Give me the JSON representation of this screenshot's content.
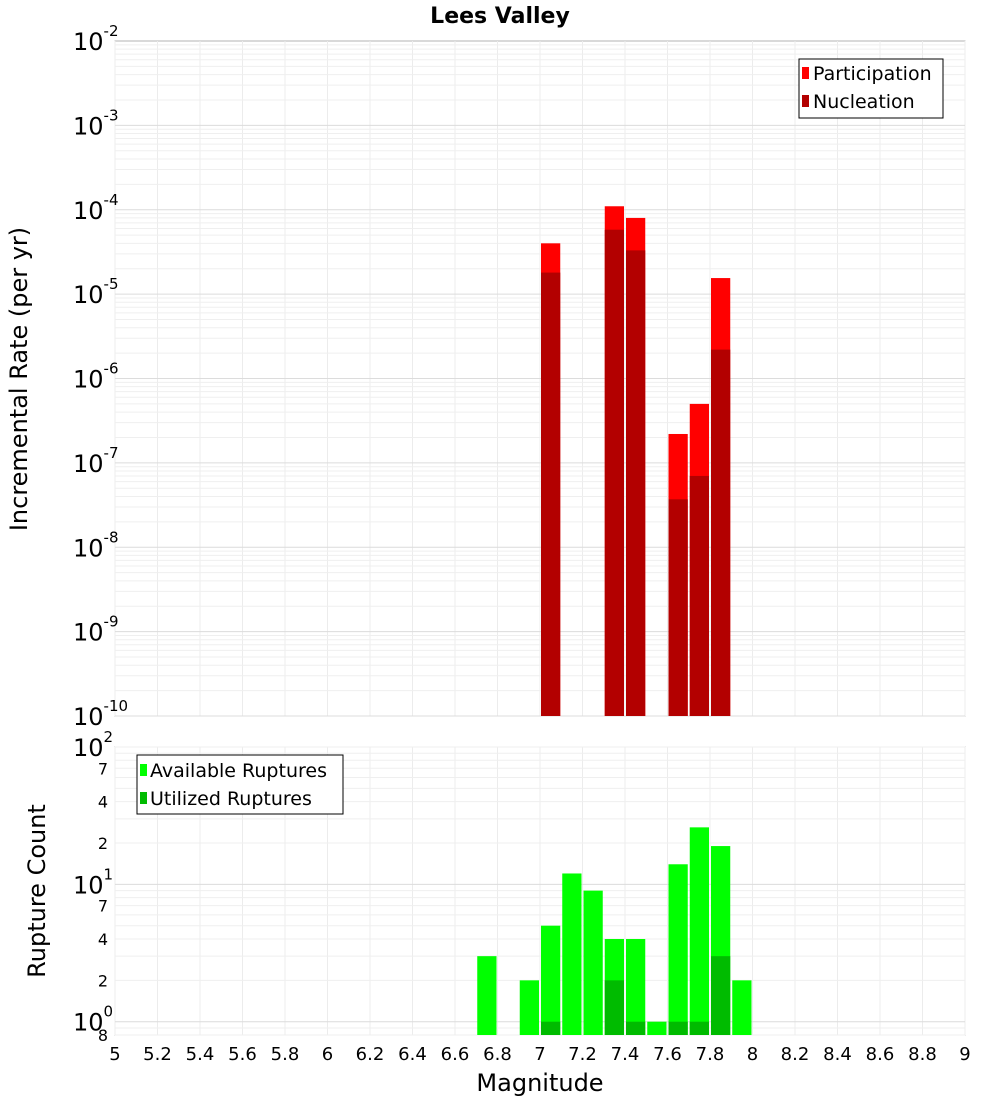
{
  "chart_data": [
    {
      "type": "bar",
      "title": "Lees Valley",
      "xlabel": "",
      "ylabel": "Incremental Rate (per yr)",
      "yscale": "log",
      "ylim": [
        1e-10,
        0.01
      ],
      "xlim": [
        5,
        9
      ],
      "grid": true,
      "legend_position": "top-right",
      "bar_width": 0.1,
      "series": [
        {
          "name": "Participation",
          "color": "#ff0000",
          "x": [
            7.05,
            7.35,
            7.45,
            7.65,
            7.75,
            7.85
          ],
          "values": [
            4e-05,
            0.00011,
            8e-05,
            2.2e-07,
            5e-07,
            1.55e-05
          ]
        },
        {
          "name": "Nucleation",
          "color": "#b30000",
          "x": [
            7.05,
            7.35,
            7.45,
            7.65,
            7.75,
            7.85
          ],
          "values": [
            1.8e-05,
            5.8e-05,
            3.3e-05,
            3.7e-08,
            7e-08,
            2.2e-06
          ]
        }
      ]
    },
    {
      "type": "bar",
      "title": "",
      "xlabel": "Magnitude",
      "ylabel": "Rupture Count",
      "yscale": "log",
      "ylim": [
        0.8,
        100
      ],
      "xlim": [
        5,
        9
      ],
      "grid": true,
      "legend_position": "top-left",
      "bar_width": 0.1,
      "x_ticks": [
        "5",
        "5.2",
        "5.4",
        "5.6",
        "5.8",
        "6",
        "6.2",
        "6.4",
        "6.6",
        "6.8",
        "7",
        "7.2",
        "7.4",
        "7.6",
        "7.8",
        "8",
        "8.2",
        "8.4",
        "8.6",
        "8.8",
        "9"
      ],
      "series": [
        {
          "name": "Available Ruptures",
          "color": "#00ff00",
          "x": [
            6.75,
            6.95,
            7.05,
            7.15,
            7.25,
            7.35,
            7.45,
            7.55,
            7.65,
            7.75,
            7.85,
            7.95
          ],
          "values": [
            3,
            2,
            5,
            12,
            9,
            4,
            4,
            1,
            14,
            26,
            19,
            2
          ]
        },
        {
          "name": "Utilized Ruptures",
          "color": "#00bb00",
          "x": [
            7.05,
            7.35,
            7.45,
            7.65,
            7.75,
            7.85
          ],
          "values": [
            1,
            2,
            1,
            1,
            1,
            3
          ]
        }
      ]
    }
  ]
}
